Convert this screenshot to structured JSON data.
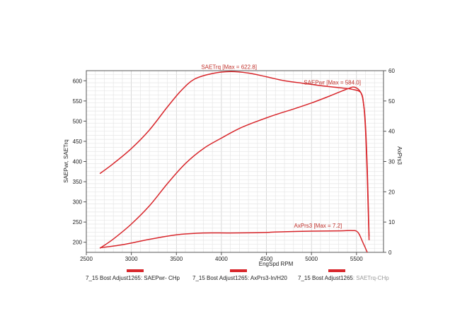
{
  "chart_data": {
    "type": "line",
    "xlabel": "EngSpd  RPM",
    "ylabel_left": "SAEPwr, SAETrq",
    "ylabel_right": "AxPrs3",
    "xlim": [
      2500,
      5800
    ],
    "ylim_left": [
      175,
      625
    ],
    "ylim_right": [
      0,
      60
    ],
    "x_ticks": [
      2500,
      3000,
      3500,
      4000,
      4500,
      5000,
      5500
    ],
    "y_left_ticks": [
      200,
      250,
      300,
      350,
      400,
      450,
      500,
      550,
      600
    ],
    "y_right_ticks": [
      0,
      10,
      20,
      30,
      40,
      50,
      60
    ],
    "grid": true,
    "line_color": "#d8262b",
    "series": [
      {
        "name": "7_15 Bost Adjust1265: SAETrq-CHp",
        "axis": "left",
        "annotation": "SAETrq [Max = 622.8]",
        "x": [
          2650,
          2800,
          3000,
          3200,
          3400,
          3550,
          3700,
          3900,
          4100,
          4300,
          4500,
          4700,
          4900,
          5100,
          5300,
          5450,
          5550,
          5580,
          5600,
          5620,
          5640
        ],
        "y": [
          370,
          395,
          432,
          478,
          535,
          575,
          604,
          618,
          622.8,
          619,
          610,
          600,
          594,
          588,
          583,
          579,
          570,
          540,
          490,
          380,
          215
        ]
      },
      {
        "name": "7_15 Bost Adjust1265: SAEPwr-CHp",
        "axis": "left",
        "annotation": "SAEPwr [Max = 584.0]",
        "x": [
          2650,
          2800,
          3000,
          3200,
          3400,
          3600,
          3800,
          4000,
          4200,
          4400,
          4600,
          4800,
          5000,
          5200,
          5400,
          5480,
          5550,
          5580,
          5600,
          5620,
          5640
        ],
        "y": [
          185,
          208,
          245,
          290,
          345,
          395,
          432,
          458,
          482,
          500,
          516,
          530,
          545,
          562,
          580,
          584,
          570,
          540,
          480,
          360,
          205
        ]
      },
      {
        "name": "7_15 Bost Adjust1265: AxPrs3-In/H20",
        "axis": "right",
        "annotation": "AxPrs3 [Max = 7.2]",
        "x": [
          2650,
          2900,
          3200,
          3500,
          3800,
          4100,
          4400,
          4700,
          5000,
          5300,
          5450,
          5500,
          5530,
          5560,
          5590,
          5620
        ],
        "y": [
          1.5,
          2.5,
          4.3,
          5.8,
          6.4,
          6.4,
          6.5,
          6.8,
          7.0,
          7.1,
          7.2,
          7.0,
          6.0,
          4.0,
          2.0,
          0.0
        ]
      }
    ]
  },
  "legend": [
    {
      "text": "7_15 Bost Adjust1265: SAEPwr- CHp"
    },
    {
      "text": "7_15 Bost Adjust1265: AxPrs3-In/H20"
    },
    {
      "text_main": "7_15 Bost Adjust1265",
      "text_faded": ": SAETrq-CHp"
    }
  ]
}
